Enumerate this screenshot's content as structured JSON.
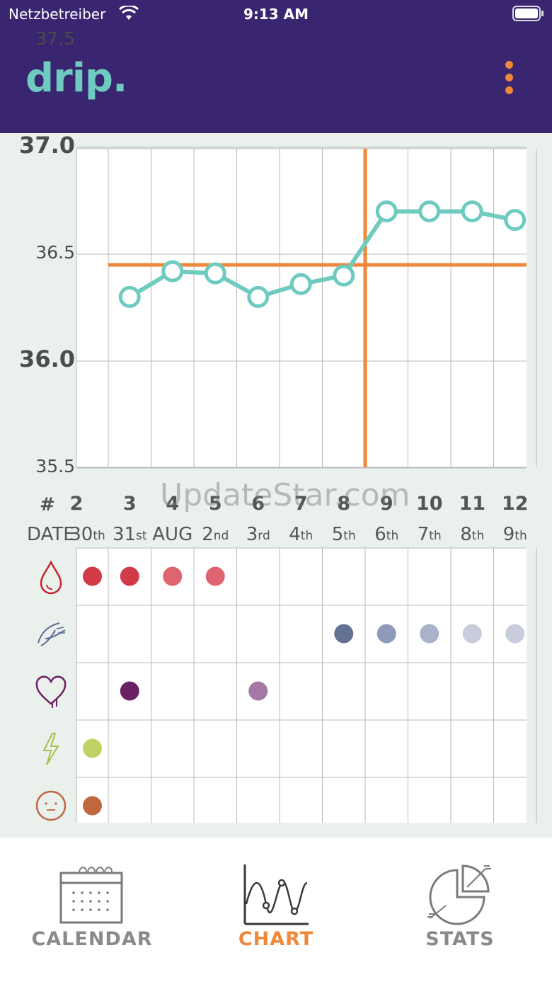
{
  "status": {
    "carrier": "Netzbetreiber",
    "time": "9:13 AM"
  },
  "header": {
    "logo": "drip.",
    "menu_icon": "more-vertical-icon"
  },
  "temperature": {
    "y_labels": [
      {
        "value": "37.5",
        "major": false
      },
      {
        "value": "37.0",
        "major": true
      },
      {
        "value": "36.5",
        "major": false
      },
      {
        "value": "36.0",
        "major": true
      },
      {
        "value": "35.5",
        "major": false
      }
    ],
    "points": [
      36.3,
      36.42,
      36.41,
      36.3,
      36.36,
      36.4,
      36.7,
      36.7,
      36.7,
      36.66
    ],
    "cover_line": 36.45,
    "ovulation_after_index": 5,
    "line_color": "#6fcac0",
    "accent_color": "#f0883a"
  },
  "columns": [
    {
      "cycle_day": "2",
      "date": "30",
      "suffix": "th"
    },
    {
      "cycle_day": "3",
      "date": "31",
      "suffix": "st"
    },
    {
      "cycle_day": "4",
      "date": "AUG",
      "suffix": ""
    },
    {
      "cycle_day": "5",
      "date": "2",
      "suffix": "nd"
    },
    {
      "cycle_day": "6",
      "date": "3",
      "suffix": "rd"
    },
    {
      "cycle_day": "7",
      "date": "4",
      "suffix": "th"
    },
    {
      "cycle_day": "8",
      "date": "5",
      "suffix": "th"
    },
    {
      "cycle_day": "9",
      "date": "6",
      "suffix": "th"
    },
    {
      "cycle_day": "10",
      "date": "7",
      "suffix": "th"
    },
    {
      "cycle_day": "11",
      "date": "8",
      "suffix": "th"
    },
    {
      "cycle_day": "12",
      "date": "9",
      "suffix": "th"
    }
  ],
  "row_labels": {
    "cycle_day": "#",
    "date": "DATE"
  },
  "symptoms": [
    {
      "icon": "bleeding-icon",
      "dots": [
        [
          0,
          "#d23a47"
        ],
        [
          1,
          "#d23a47"
        ],
        [
          2,
          "#de6570"
        ],
        [
          3,
          "#de6570"
        ]
      ]
    },
    {
      "icon": "mucus-icon",
      "dots": [
        [
          6,
          "#647294"
        ],
        [
          7,
          "#8e9bb8"
        ],
        [
          8,
          "#a8b2c8"
        ],
        [
          9,
          "#c8cddd"
        ],
        [
          10,
          "#c8cddd"
        ]
      ]
    },
    {
      "icon": "sex-icon",
      "dots": [
        [
          1,
          "#6a2163"
        ],
        [
          4,
          "#a678a4"
        ]
      ]
    },
    {
      "icon": "pain-icon",
      "dots": [
        [
          0,
          "#bfd263"
        ]
      ]
    },
    {
      "icon": "mood-icon",
      "dots": [
        [
          0,
          "#c0673f"
        ]
      ]
    }
  ],
  "watermark": "UpdateStar.com",
  "tabs": [
    {
      "label": "CALENDAR",
      "icon": "calendar-icon",
      "active": false
    },
    {
      "label": "CHART",
      "icon": "chart-icon",
      "active": true
    },
    {
      "label": "STATS",
      "icon": "stats-icon",
      "active": false
    }
  ]
}
